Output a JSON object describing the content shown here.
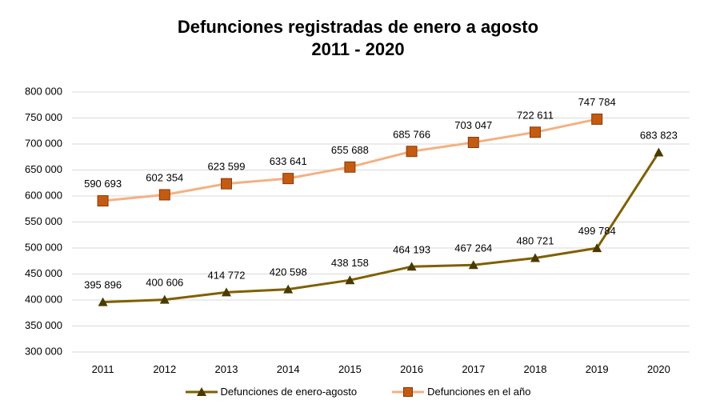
{
  "chart_data": {
    "type": "line",
    "title_line1": "Defunciones registradas de enero a agosto",
    "title_line2": "2011 - 2020",
    "xlabel": "",
    "ylabel": "",
    "categories": [
      "2011",
      "2012",
      "2013",
      "2014",
      "2015",
      "2016",
      "2017",
      "2018",
      "2019",
      "2020"
    ],
    "ylim": [
      300000,
      800000
    ],
    "y_ticks": [
      300000,
      350000,
      400000,
      450000,
      500000,
      550000,
      600000,
      650000,
      700000,
      750000,
      800000
    ],
    "y_tick_labels": [
      "300 000",
      "350 000",
      "400 000",
      "450 000",
      "500 000",
      "550 000",
      "600 000",
      "650 000",
      "700 000",
      "750 000",
      "800 000"
    ],
    "grid": true,
    "legend_position": "bottom",
    "series": [
      {
        "name": "Defunciones de enero-agosto",
        "color": "#7f6000",
        "marker": "triangle",
        "values": [
          395896,
          400606,
          414772,
          420598,
          438158,
          464193,
          467264,
          480721,
          499784,
          683823
        ],
        "labels": [
          "395 896",
          "400 606",
          "414 772",
          "420 598",
          "438 158",
          "464 193",
          "467 264",
          "480 721",
          "499 784",
          "683 823"
        ]
      },
      {
        "name": "Defunciones en el año",
        "color": "#f4b183",
        "marker_color": "#c55a11",
        "marker": "square",
        "values": [
          590693,
          602354,
          623599,
          633641,
          655688,
          685766,
          703047,
          722611,
          747784,
          null
        ],
        "labels": [
          "590 693",
          "602 354",
          "623 599",
          "633 641",
          "655 688",
          "685 766",
          "703 047",
          "722 611",
          "747 784",
          ""
        ]
      }
    ]
  }
}
